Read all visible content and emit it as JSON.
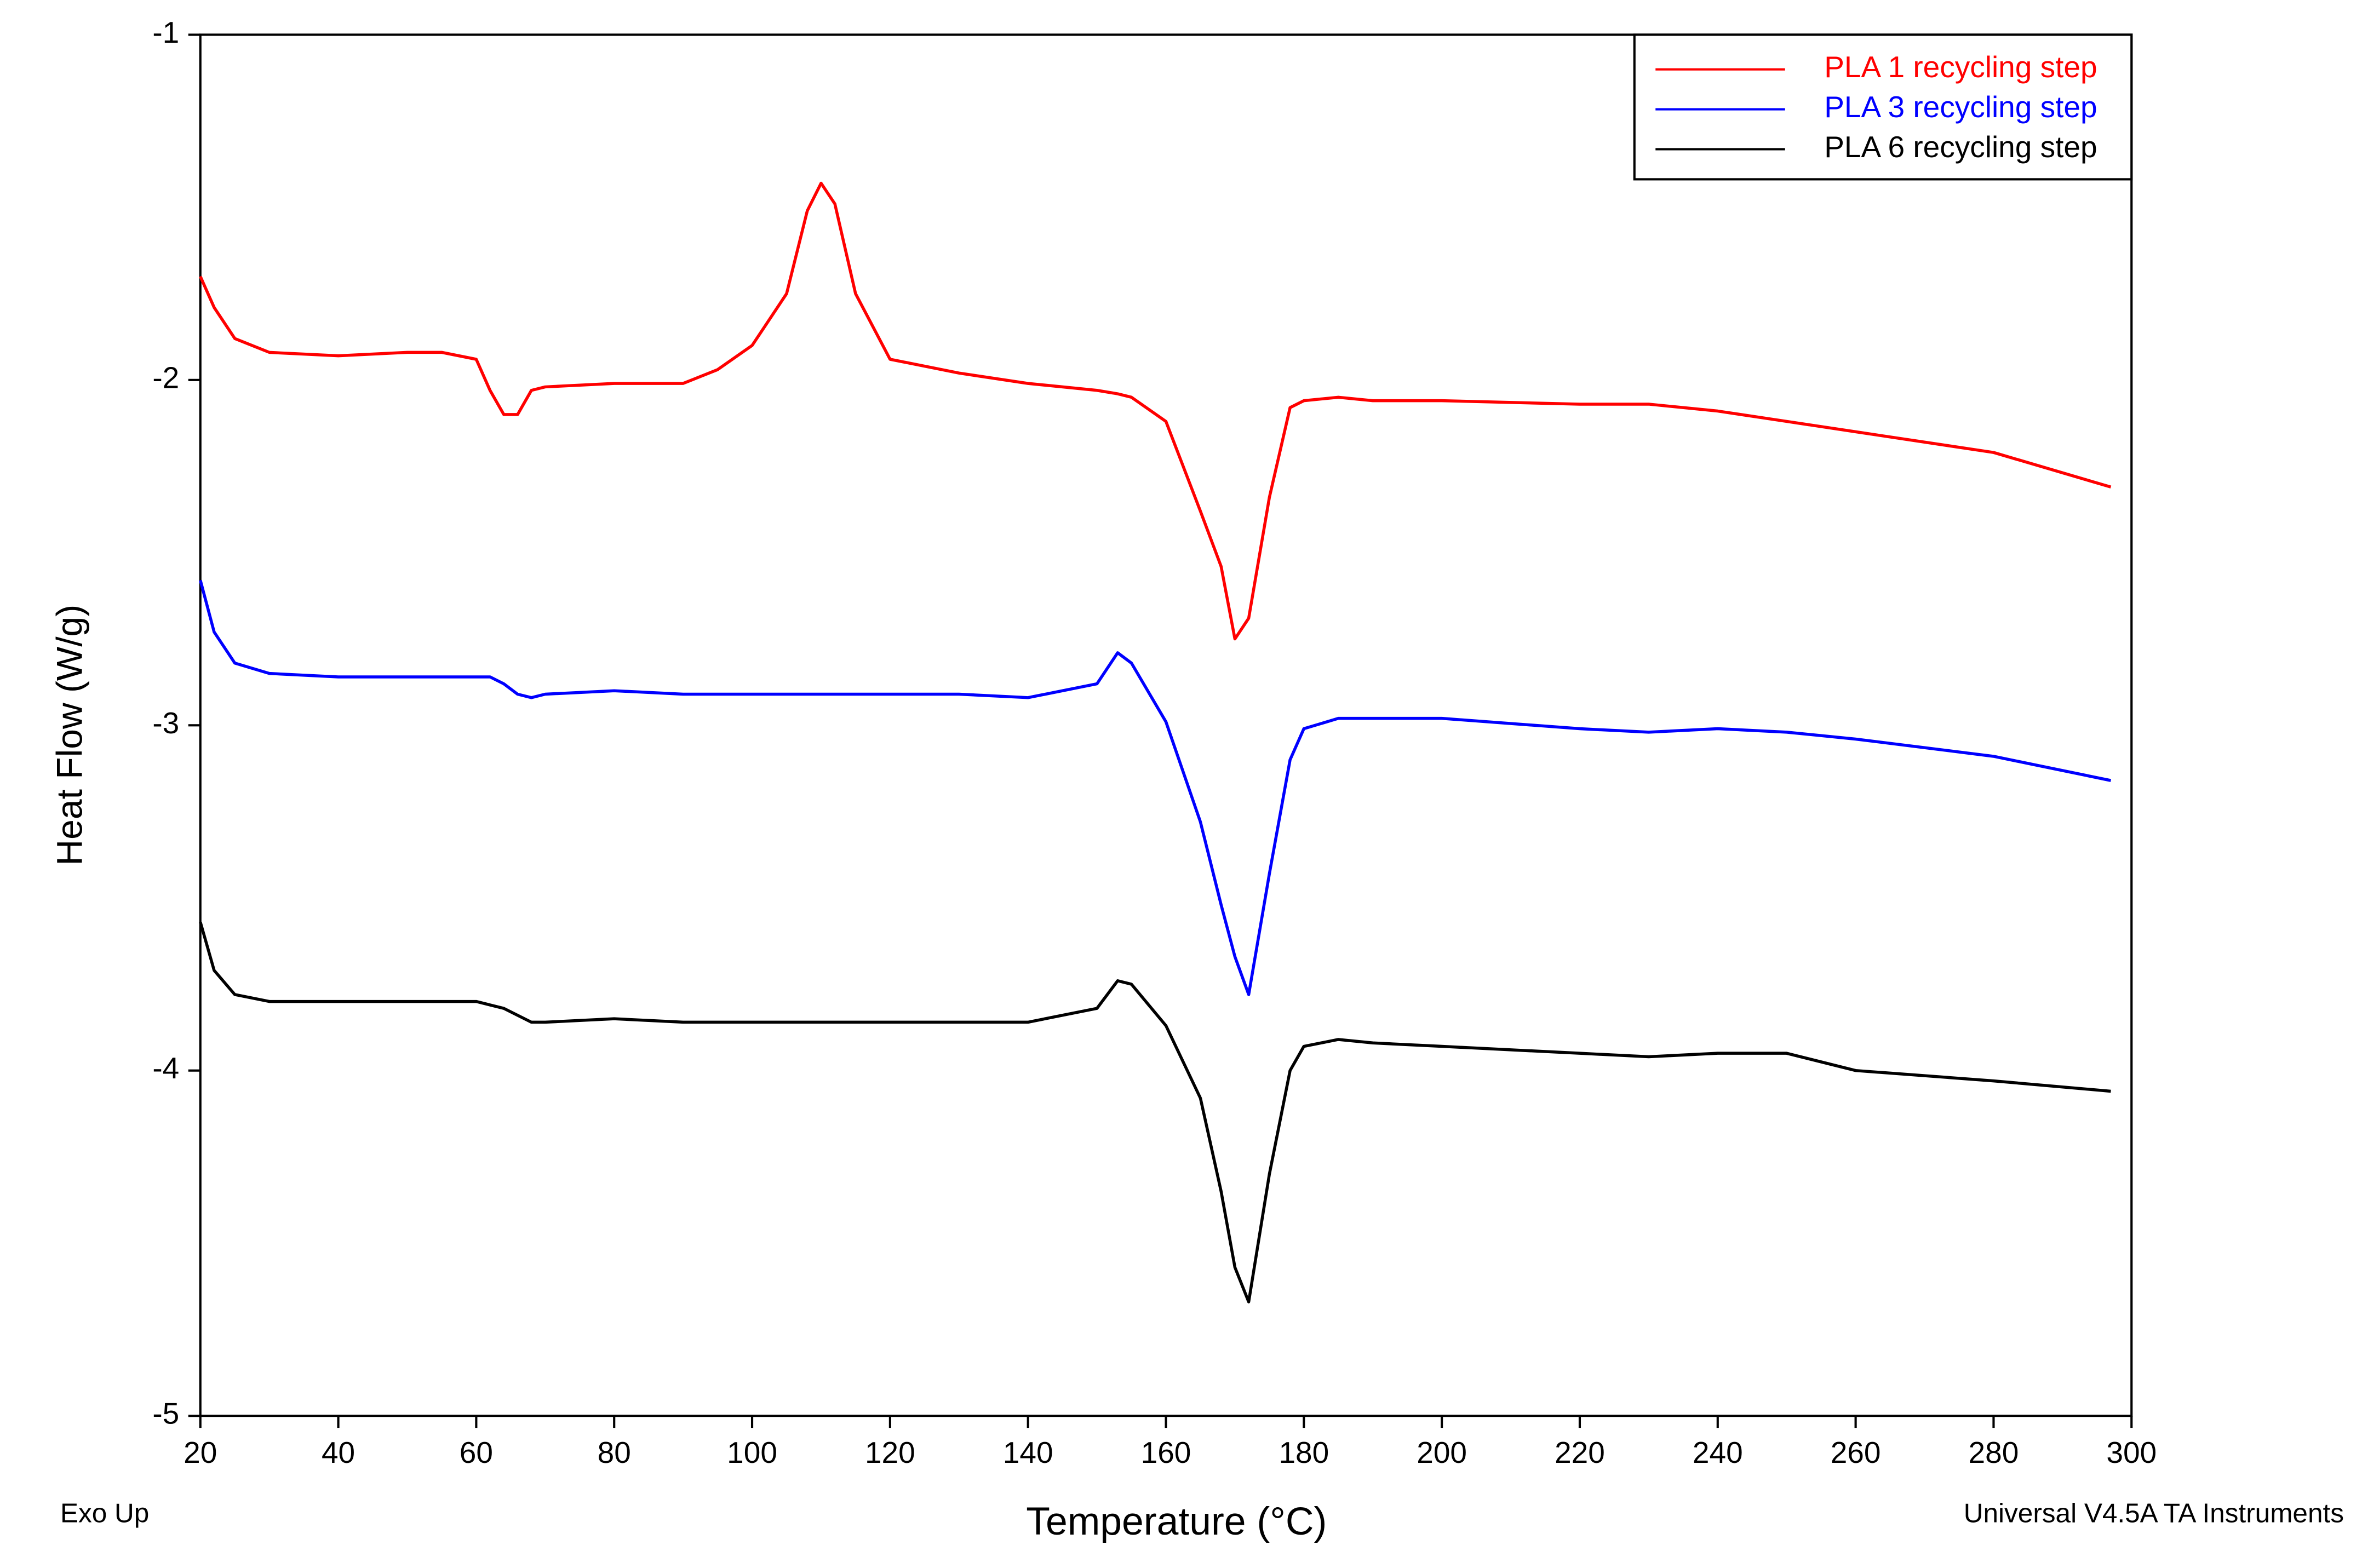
{
  "chart_data": {
    "type": "line",
    "y_label": "Heat Flow (W/g)",
    "x_label": "Temperature (°C)",
    "annotations": [
      "Exo Up",
      "Universal V4.5A TA Instruments"
    ],
    "x": [
      20,
      22,
      25,
      30,
      40,
      50,
      55,
      60,
      62,
      64,
      66,
      68,
      70,
      80,
      90,
      95,
      100,
      105,
      108,
      110,
      112,
      115,
      120,
      130,
      140,
      150,
      153,
      155,
      160,
      165,
      168,
      170,
      172,
      175,
      178,
      180,
      185,
      190,
      200,
      220,
      230,
      240,
      250,
      260,
      280,
      297
    ],
    "series": [
      {
        "name": "PLA 1 recycling step",
        "color": "#ff0000",
        "values": [
          -1.7,
          -1.79,
          -1.88,
          -1.92,
          -1.93,
          -1.92,
          -1.92,
          -1.94,
          -2.03,
          -2.1,
          -2.1,
          -2.03,
          -2.02,
          -2.01,
          -2.01,
          -1.97,
          -1.9,
          -1.75,
          -1.51,
          -1.43,
          -1.49,
          -1.75,
          -1.94,
          -1.98,
          -2.01,
          -2.03,
          -2.04,
          -2.05,
          -2.12,
          -2.38,
          -2.54,
          -2.75,
          -2.69,
          -2.34,
          -2.08,
          -2.06,
          -2.05,
          -2.06,
          -2.06,
          -2.07,
          -2.07,
          -2.09,
          -2.12,
          -2.15,
          -2.21,
          -2.31
        ]
      },
      {
        "name": "PLA 3 recycling step",
        "color": "#0000ff",
        "values": [
          -2.58,
          -2.73,
          -2.82,
          -2.85,
          -2.86,
          -2.86,
          -2.86,
          -2.86,
          -2.86,
          -2.88,
          -2.91,
          -2.92,
          -2.91,
          -2.9,
          -2.91,
          -2.91,
          -2.91,
          -2.91,
          -2.91,
          -2.91,
          -2.91,
          -2.91,
          -2.91,
          -2.91,
          -2.92,
          -2.88,
          -2.79,
          -2.82,
          -2.99,
          -3.28,
          -3.52,
          -3.67,
          -3.78,
          -3.43,
          -3.1,
          -3.01,
          -2.98,
          -2.98,
          -2.98,
          -3.01,
          -3.02,
          -3.01,
          -3.02,
          -3.04,
          -3.09,
          -3.16
        ]
      },
      {
        "name": "PLA 6 recycling step",
        "color": "#000000",
        "values": [
          -3.57,
          -3.71,
          -3.78,
          -3.8,
          -3.8,
          -3.8,
          -3.8,
          -3.8,
          -3.81,
          -3.82,
          -3.84,
          -3.86,
          -3.86,
          -3.85,
          -3.86,
          -3.86,
          -3.86,
          -3.86,
          -3.86,
          -3.86,
          -3.86,
          -3.86,
          -3.86,
          -3.86,
          -3.86,
          -3.82,
          -3.74,
          -3.75,
          -3.87,
          -4.08,
          -4.35,
          -4.57,
          -4.67,
          -4.3,
          -4.0,
          -3.93,
          -3.91,
          -3.92,
          -3.93,
          -3.95,
          -3.96,
          -3.95,
          -3.95,
          -4.0,
          -4.03,
          -4.06
        ]
      }
    ],
    "xlim": [
      20,
      300
    ],
    "ylim": [
      -5,
      -1
    ],
    "xticks": [
      20,
      40,
      60,
      80,
      100,
      120,
      140,
      160,
      180,
      200,
      220,
      240,
      260,
      280,
      300
    ],
    "yticks": [
      -1,
      -2,
      -3,
      -4,
      -5
    ],
    "legend": "top-right"
  }
}
